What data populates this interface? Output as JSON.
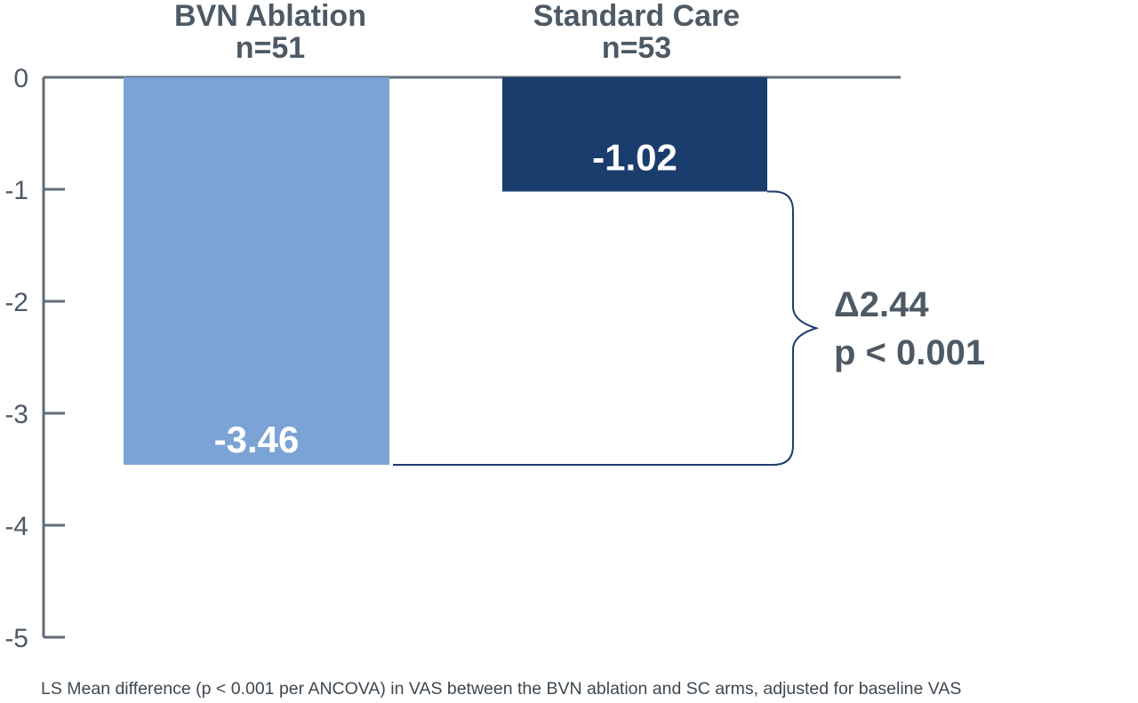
{
  "chart_data": {
    "type": "bar",
    "categories": [
      "BVN Ablation",
      "Standard Care"
    ],
    "category_n": [
      "n=51",
      "n=53"
    ],
    "values": [
      -3.46,
      -1.02
    ],
    "value_labels": [
      "-3.46",
      "-1.02"
    ],
    "colors": [
      "#7ba3d6",
      "#1b3d6e"
    ],
    "ylim": [
      -5,
      0
    ],
    "yticks": [
      0,
      -1,
      -2,
      -3,
      -4,
      -5
    ],
    "ytick_labels": [
      "0",
      "-1",
      "-2",
      "-3",
      "-4",
      "-5"
    ],
    "grid": false,
    "annotation": {
      "difference": "Δ2.44",
      "p_value": "p < 0.001"
    }
  },
  "footnote": "LS Mean difference (p < 0.001 per ANCOVA) in VAS between the BVN ablation and SC arms, adjusted for baseline VAS"
}
